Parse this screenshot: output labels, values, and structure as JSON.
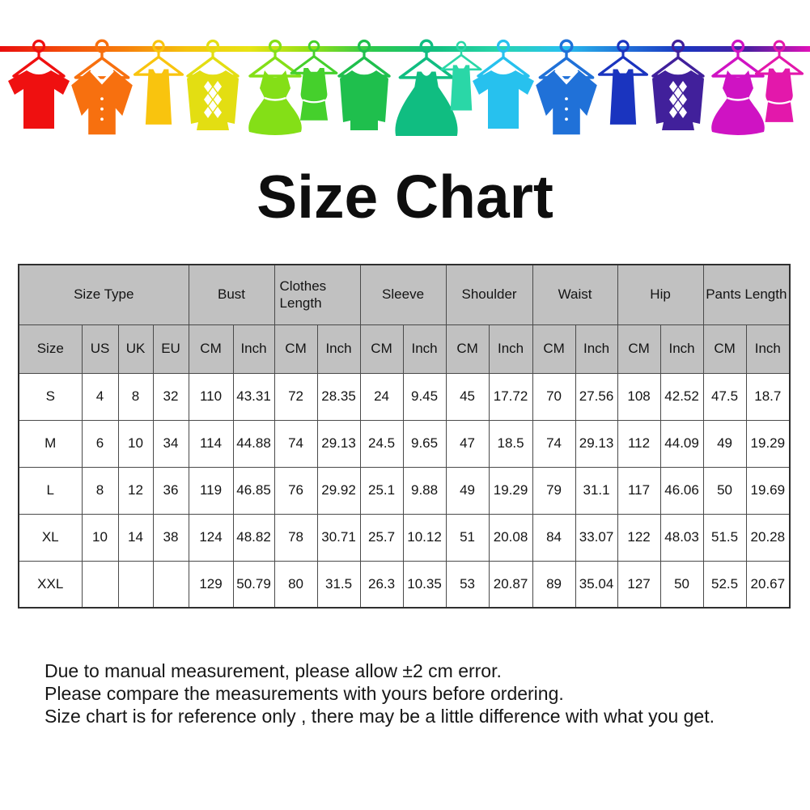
{
  "title": "Size Chart",
  "banner": {
    "description": "rainbow clothesline with colorful hanging garment silhouettes",
    "rope_gradient": [
      "#e90d0d",
      "#f34a0b",
      "#f67f0b",
      "#f5c40d",
      "#e8e414",
      "#8fdf17",
      "#2cc84e",
      "#12c07f",
      "#28d5ac",
      "#29c2ee",
      "#2173d9",
      "#1a34bf",
      "#4a1fa0",
      "#e211b9"
    ],
    "garments": [
      {
        "icon": "tshirt-icon",
        "color": "#ef1010"
      },
      {
        "icon": "shirt-icon",
        "color": "#f7700f"
      },
      {
        "icon": "tank-top-icon",
        "color": "#f9c40e"
      },
      {
        "icon": "argyle-sweater-icon",
        "color": "#e3de12"
      },
      {
        "icon": "vneck-dress-icon",
        "color": "#84df17"
      },
      {
        "icon": "mini-dress-icon",
        "color": "#45d02c"
      },
      {
        "icon": "sweater-icon",
        "color": "#1fbf4d"
      },
      {
        "icon": "flare-dress-icon",
        "color": "#10bd81"
      },
      {
        "icon": "tank-top-icon",
        "color": "#2ad7a7"
      },
      {
        "icon": "tshirt-icon",
        "color": "#27c1ee"
      },
      {
        "icon": "shirt-icon",
        "color": "#2071d8"
      },
      {
        "icon": "tank-top-icon",
        "color": "#1a34bf"
      },
      {
        "icon": "argyle-sweater-icon",
        "color": "#41209b"
      },
      {
        "icon": "vneck-dress-icon",
        "color": "#cf13c3"
      },
      {
        "icon": "mini-dress-icon",
        "color": "#e318ab"
      }
    ]
  },
  "chart_data": {
    "type": "table",
    "title": "Size Chart",
    "column_groups": [
      {
        "label": "Size Type",
        "span": 4
      },
      {
        "label": "Bust",
        "span": 2
      },
      {
        "label": "Clothes Length",
        "span": 2
      },
      {
        "label": "Sleeve",
        "span": 2
      },
      {
        "label": "Shoulder",
        "span": 2
      },
      {
        "label": "Waist",
        "span": 2
      },
      {
        "label": "Hip",
        "span": 2
      },
      {
        "label": "Pants Length",
        "span": 2
      }
    ],
    "sub_headers": [
      "Size",
      "US",
      "UK",
      "EU",
      "CM",
      "Inch",
      "CM",
      "Inch",
      "CM",
      "Inch",
      "CM",
      "Inch",
      "CM",
      "Inch",
      "CM",
      "Inch",
      "CM",
      "Inch"
    ],
    "rows": [
      [
        "S",
        "4",
        "8",
        "32",
        "110",
        "43.31",
        "72",
        "28.35",
        "24",
        "9.45",
        "45",
        "17.72",
        "70",
        "27.56",
        "108",
        "42.52",
        "47.5",
        "18.7"
      ],
      [
        "M",
        "6",
        "10",
        "34",
        "114",
        "44.88",
        "74",
        "29.13",
        "24.5",
        "9.65",
        "47",
        "18.5",
        "74",
        "29.13",
        "112",
        "44.09",
        "49",
        "19.29"
      ],
      [
        "L",
        "8",
        "12",
        "36",
        "119",
        "46.85",
        "76",
        "29.92",
        "25.1",
        "9.88",
        "49",
        "19.29",
        "79",
        "31.1",
        "117",
        "46.06",
        "50",
        "19.69"
      ],
      [
        "XL",
        "10",
        "14",
        "38",
        "124",
        "48.82",
        "78",
        "30.71",
        "25.7",
        "10.12",
        "51",
        "20.08",
        "84",
        "33.07",
        "122",
        "48.03",
        "51.5",
        "20.28"
      ],
      [
        "XXL",
        "",
        "",
        "",
        "129",
        "50.79",
        "80",
        "31.5",
        "26.3",
        "10.35",
        "53",
        "20.87",
        "89",
        "35.04",
        "127",
        "50",
        "52.5",
        "20.67"
      ]
    ]
  },
  "notes": {
    "lines": [
      "Due to manual measurement, please allow ±2 cm error.",
      "Please compare the measurements with yours before ordering.",
      "Size chart is for reference only , there may be a little difference with what you get."
    ]
  },
  "colors": {
    "header_bg": "#c1c1c1",
    "table_border": "#4a4a4a",
    "text": "#141414"
  }
}
